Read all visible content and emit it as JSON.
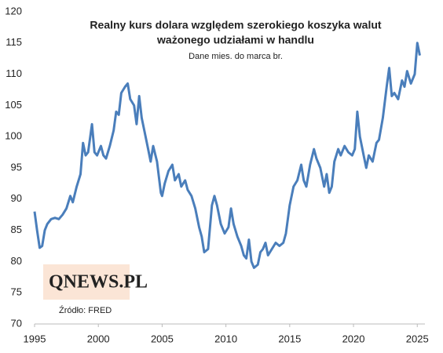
{
  "chart_data": {
    "type": "line",
    "title": [
      "Realny kurs dolara  względem szerokiego koszyka walut",
      "ważonego udziałami  w handlu"
    ],
    "subtitle": "Dane mies. do marca br.",
    "logo": "QNEWS.PL",
    "source": "Źródło: FRED",
    "color": "#4a7ebb",
    "xlim": [
      1995,
      2025.6
    ],
    "xticks": [
      1995,
      2000,
      2005,
      2010,
      2015,
      2020,
      2025
    ],
    "ylim": [
      70,
      120
    ],
    "yticks": [
      70,
      75,
      80,
      85,
      90,
      95,
      100,
      105,
      110,
      115,
      120
    ],
    "x": [
      1995.0,
      1995.2,
      1995.4,
      1995.6,
      1995.8,
      1996.0,
      1996.3,
      1996.6,
      1996.9,
      1997.2,
      1997.5,
      1997.8,
      1998.0,
      1998.3,
      1998.6,
      1998.8,
      1999.0,
      1999.2,
      1999.5,
      1999.7,
      1999.9,
      2000.2,
      2000.4,
      2000.6,
      2000.9,
      2001.2,
      2001.4,
      2001.6,
      2001.8,
      2002.1,
      2002.3,
      2002.5,
      2002.8,
      2003.0,
      2003.2,
      2003.4,
      2003.6,
      2003.9,
      2004.1,
      2004.3,
      2004.6,
      2004.9,
      2005.0,
      2005.2,
      2005.5,
      2005.8,
      2006.0,
      2006.3,
      2006.5,
      2006.8,
      2007.0,
      2007.3,
      2007.6,
      2007.9,
      2008.1,
      2008.3,
      2008.6,
      2008.9,
      2009.1,
      2009.3,
      2009.6,
      2009.9,
      2010.2,
      2010.4,
      2010.6,
      2010.9,
      2011.2,
      2011.4,
      2011.6,
      2011.8,
      2012.0,
      2012.2,
      2012.5,
      2012.7,
      2012.9,
      2013.1,
      2013.3,
      2013.6,
      2013.9,
      2014.2,
      2014.5,
      2014.7,
      2015.0,
      2015.3,
      2015.6,
      2015.9,
      2016.1,
      2016.3,
      2016.6,
      2016.9,
      2017.1,
      2017.4,
      2017.7,
      2017.9,
      2018.1,
      2018.3,
      2018.5,
      2018.8,
      2019.0,
      2019.3,
      2019.6,
      2019.9,
      2020.1,
      2020.3,
      2020.5,
      2020.8,
      2021.0,
      2021.2,
      2021.5,
      2021.8,
      2022.0,
      2022.3,
      2022.6,
      2022.8,
      2023.0,
      2023.2,
      2023.5,
      2023.8,
      2024.0,
      2024.2,
      2024.5,
      2024.8,
      2025.0,
      2025.2
    ],
    "values": [
      88,
      85,
      82.2,
      82.5,
      85,
      86,
      86.8,
      87,
      86.8,
      87.5,
      88.5,
      90.5,
      89.5,
      92,
      94,
      99,
      97,
      97.5,
      102,
      97.5,
      97,
      98.5,
      97,
      96.5,
      98.5,
      101,
      104,
      103.5,
      107,
      108,
      108.5,
      106,
      105,
      102,
      106.5,
      103,
      101,
      98,
      96,
      98.5,
      96,
      91,
      90.5,
      92.5,
      94.5,
      95.5,
      93,
      94,
      92,
      93,
      91.5,
      90.5,
      88.5,
      85.5,
      84,
      81.5,
      82,
      89,
      90.5,
      89,
      86,
      84.5,
      85.5,
      88.5,
      86,
      84,
      82.5,
      81,
      80.5,
      83.5,
      80,
      79,
      79.5,
      81.5,
      82,
      83,
      81,
      82,
      83,
      82.5,
      83,
      84.5,
      89,
      92,
      93,
      95.5,
      93,
      92,
      95.5,
      98,
      96.5,
      95,
      92,
      94,
      91,
      92,
      96,
      98,
      97,
      98.5,
      97.5,
      97,
      98,
      104,
      100,
      97,
      95,
      97,
      96,
      99,
      99.5,
      103,
      108,
      111,
      106.5,
      107,
      106,
      109,
      108,
      110.5,
      108.5,
      110,
      115,
      113
    ]
  }
}
